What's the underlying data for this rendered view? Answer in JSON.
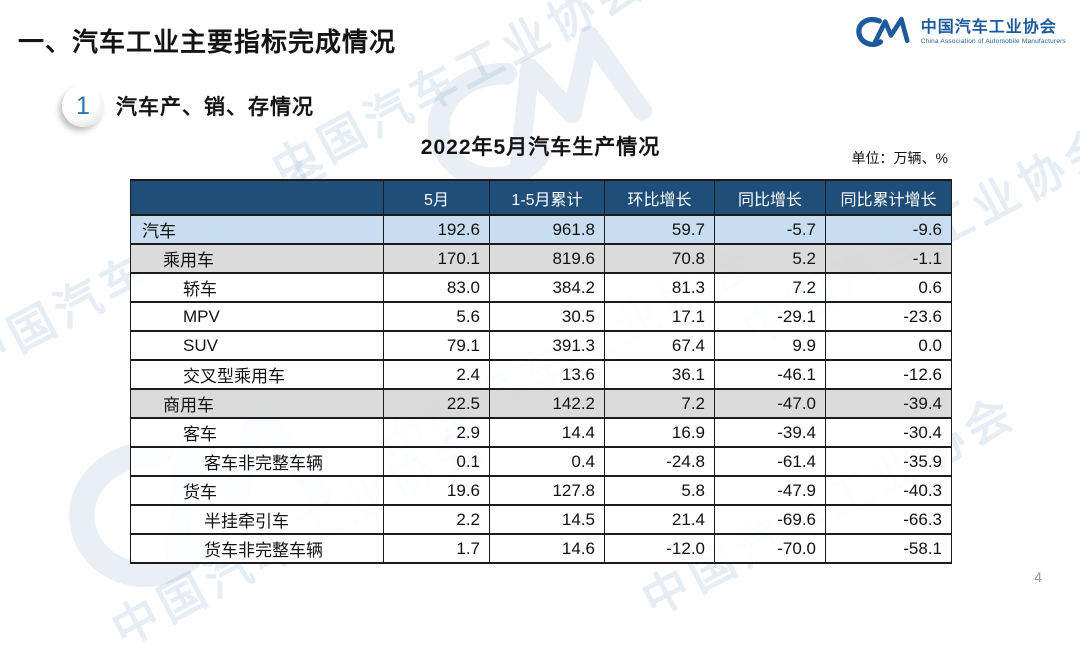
{
  "page": {
    "title": "一、汽车工业主要指标完成情况",
    "page_number": "4"
  },
  "logo": {
    "name_cn": "中国汽车工业协会",
    "name_en": "China Association of Automobile Manufacturers",
    "brand_color": "#1d5a9b"
  },
  "section": {
    "badge": "1",
    "heading": "汽车产、销、存情况"
  },
  "table": {
    "title": "2022年5月汽车生产情况",
    "unit_label": "单位：万辆、%",
    "columns": [
      "",
      "5月",
      "1-5月累计",
      "环比增长",
      "同比增长",
      "同比累计增长"
    ],
    "colors": {
      "header_bg": "#1f4e79",
      "header_text": "#ffffff",
      "row_highlight_blue": "#c5dcef",
      "row_highlight_gray": "#d9d9d9",
      "border": "#1b1b1b"
    },
    "rows": [
      {
        "label": "汽车",
        "indent": 0,
        "bg": "blue",
        "values": [
          "192.6",
          "961.8",
          "59.7",
          "-5.7",
          "-9.6"
        ]
      },
      {
        "label": "乘用车",
        "indent": 1,
        "bg": "gray",
        "values": [
          "170.1",
          "819.6",
          "70.8",
          "5.2",
          "-1.1"
        ]
      },
      {
        "label": "轿车",
        "indent": 2,
        "bg": "white",
        "values": [
          "83.0",
          "384.2",
          "81.3",
          "7.2",
          "0.6"
        ]
      },
      {
        "label": "MPV",
        "indent": 2,
        "bg": "white",
        "values": [
          "5.6",
          "30.5",
          "17.1",
          "-29.1",
          "-23.6"
        ]
      },
      {
        "label": "SUV",
        "indent": 2,
        "bg": "white",
        "values": [
          "79.1",
          "391.3",
          "67.4",
          "9.9",
          "0.0"
        ]
      },
      {
        "label": "交叉型乘用车",
        "indent": 2,
        "bg": "white",
        "values": [
          "2.4",
          "13.6",
          "36.1",
          "-46.1",
          "-12.6"
        ]
      },
      {
        "label": "商用车",
        "indent": 1,
        "bg": "gray",
        "values": [
          "22.5",
          "142.2",
          "7.2",
          "-47.0",
          "-39.4"
        ]
      },
      {
        "label": "客车",
        "indent": 2,
        "bg": "white",
        "values": [
          "2.9",
          "14.4",
          "16.9",
          "-39.4",
          "-30.4"
        ]
      },
      {
        "label": "客车非完整车辆",
        "indent": 3,
        "bg": "white",
        "values": [
          "0.1",
          "0.4",
          "-24.8",
          "-61.4",
          "-35.9"
        ]
      },
      {
        "label": "货车",
        "indent": 2,
        "bg": "white",
        "values": [
          "19.6",
          "127.8",
          "5.8",
          "-47.9",
          "-40.3"
        ]
      },
      {
        "label": "半挂牵引车",
        "indent": 3,
        "bg": "white",
        "values": [
          "2.2",
          "14.5",
          "21.4",
          "-69.6",
          "-66.3"
        ]
      },
      {
        "label": "货车非完整车辆",
        "indent": 3,
        "bg": "white",
        "values": [
          "1.7",
          "14.6",
          "-12.0",
          "-70.0",
          "-58.1"
        ]
      }
    ]
  },
  "watermark": {
    "text": "中国汽车工业协会"
  },
  "chart_data": {
    "type": "table",
    "title": "2022年5月汽车生产情况",
    "unit": "万辆、%",
    "columns": [
      "5月",
      "1-5月累计",
      "环比增长",
      "同比增长",
      "同比累计增长"
    ],
    "rows": [
      {
        "label": "汽车",
        "values": [
          192.6,
          961.8,
          59.7,
          -5.7,
          -9.6
        ]
      },
      {
        "label": "乘用车",
        "values": [
          170.1,
          819.6,
          70.8,
          5.2,
          -1.1
        ]
      },
      {
        "label": "轿车",
        "values": [
          83.0,
          384.2,
          81.3,
          7.2,
          0.6
        ]
      },
      {
        "label": "MPV",
        "values": [
          5.6,
          30.5,
          17.1,
          -29.1,
          -23.6
        ]
      },
      {
        "label": "SUV",
        "values": [
          79.1,
          391.3,
          67.4,
          9.9,
          0.0
        ]
      },
      {
        "label": "交叉型乘用车",
        "values": [
          2.4,
          13.6,
          36.1,
          -46.1,
          -12.6
        ]
      },
      {
        "label": "商用车",
        "values": [
          22.5,
          142.2,
          7.2,
          -47.0,
          -39.4
        ]
      },
      {
        "label": "客车",
        "values": [
          2.9,
          14.4,
          16.9,
          -39.4,
          -30.4
        ]
      },
      {
        "label": "客车非完整车辆",
        "values": [
          0.1,
          0.4,
          -24.8,
          -61.4,
          -35.9
        ]
      },
      {
        "label": "货车",
        "values": [
          19.6,
          127.8,
          5.8,
          -47.9,
          -40.3
        ]
      },
      {
        "label": "半挂牵引车",
        "values": [
          2.2,
          14.5,
          21.4,
          -69.6,
          -66.3
        ]
      },
      {
        "label": "货车非完整车辆",
        "values": [
          1.7,
          14.6,
          -12.0,
          -70.0,
          -58.1
        ]
      }
    ]
  }
}
